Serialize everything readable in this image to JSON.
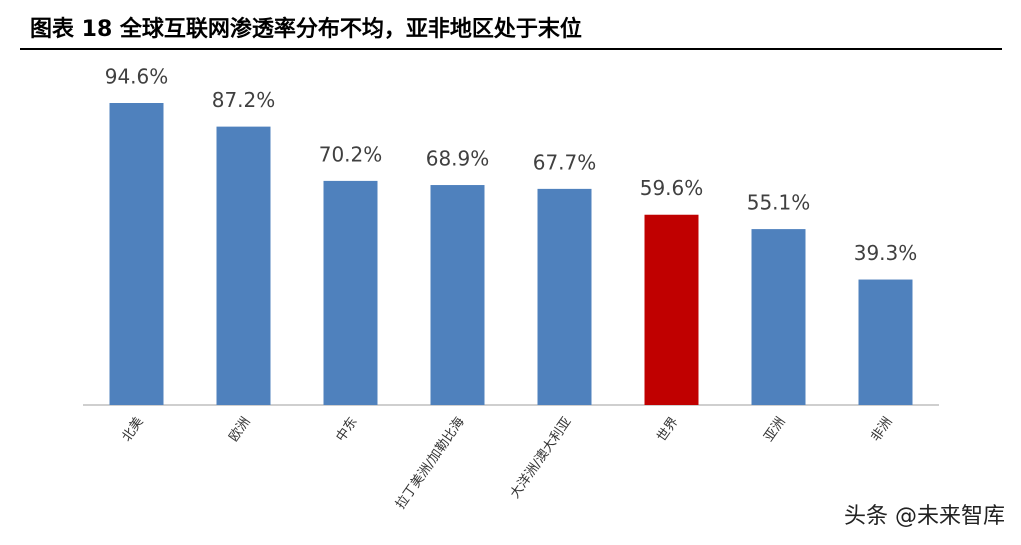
{
  "chart_data": {
    "type": "bar",
    "title": "图表 18  全球互联网渗透率分布不均，亚非地区处于末位",
    "categories": [
      "北美",
      "欧洲",
      "中东",
      "拉丁美洲/加勒比海",
      "大洋洲/澳大利亚",
      "世界",
      "亚洲",
      "非洲"
    ],
    "values": [
      94.6,
      87.2,
      70.2,
      68.9,
      67.7,
      59.6,
      55.1,
      39.3
    ],
    "value_labels": [
      "94.6%",
      "87.2%",
      "70.2%",
      "68.9%",
      "67.7%",
      "59.6%",
      "55.1%",
      "39.3%"
    ],
    "colors": [
      "#4f81bd",
      "#4f81bd",
      "#4f81bd",
      "#4f81bd",
      "#4f81bd",
      "#c00000",
      "#4f81bd",
      "#4f81bd"
    ],
    "watermark": "头条 @未来智库"
  }
}
